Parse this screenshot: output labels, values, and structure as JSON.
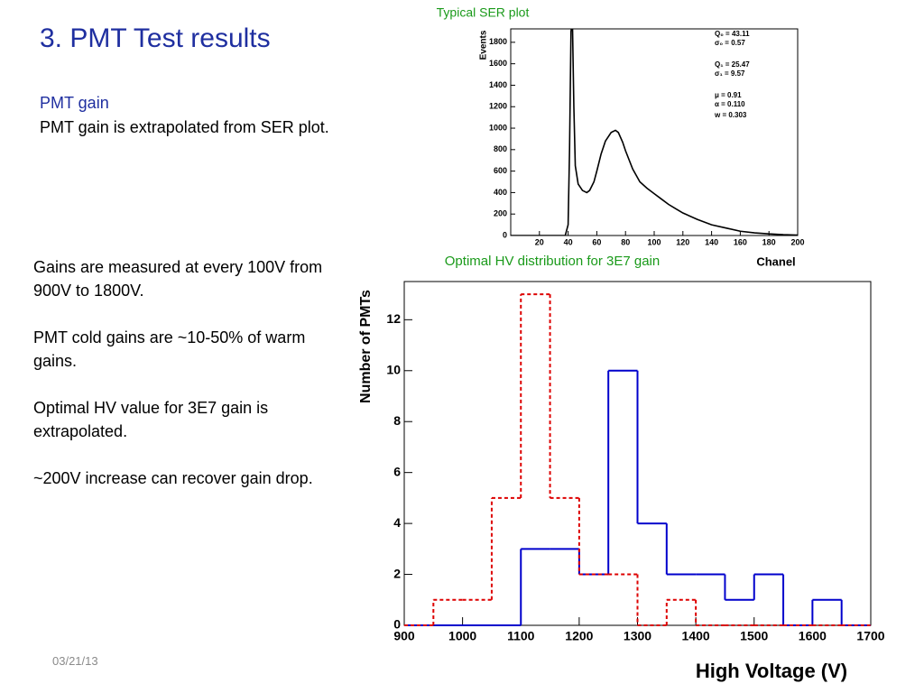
{
  "slide": {
    "title": "3. PMT Test results",
    "subtitle": "PMT gain",
    "intro": "PMT gain is extrapolated from SER plot.",
    "paragraphs": [
      "Gains are measured at every 100V from 900V to 1800V.",
      "PMT cold gains are ~10-50% of warm gains.",
      "Optimal HV value for 3E7 gain is extrapolated.",
      "~200V increase can recover gain drop."
    ],
    "date": "03/21/13"
  },
  "chart_data": [
    {
      "type": "line",
      "title": "Typical SER plot",
      "xlabel": "Chanel",
      "ylabel": "Events",
      "color": "#000000",
      "x": [
        0,
        38,
        40,
        41,
        42,
        43,
        44,
        45,
        47,
        50,
        53,
        55,
        58,
        60,
        63,
        66,
        70,
        73,
        75,
        78,
        80,
        85,
        90,
        95,
        100,
        105,
        110,
        115,
        120,
        130,
        140,
        150,
        160,
        170,
        180,
        190,
        200
      ],
      "values": [
        0,
        0,
        100,
        800,
        1900,
        2000,
        1200,
        650,
        480,
        420,
        400,
        420,
        500,
        600,
        760,
        880,
        960,
        980,
        960,
        870,
        790,
        620,
        500,
        440,
        390,
        340,
        290,
        250,
        210,
        150,
        100,
        70,
        40,
        25,
        15,
        8,
        4
      ],
      "xlim": [
        0,
        200
      ],
      "xticks": [
        20,
        40,
        60,
        80,
        100,
        120,
        140,
        160,
        180,
        200
      ],
      "ylim": [
        0,
        1925
      ],
      "yticks": [
        0,
        200,
        400,
        600,
        800,
        1000,
        1200,
        1400,
        1600,
        1800
      ],
      "annotations": [
        "Q₀ = 43.11",
        "σ₀ = 0.57",
        "Q₁ = 25.47",
        "σ₁ = 9.57",
        "μ = 0.91",
        "α = 0.110",
        "w = 0.303"
      ]
    },
    {
      "type": "histogram",
      "title": "Optimal HV distribution for 3E7 gain",
      "xlabel": "High Voltage (V)",
      "ylabel": "Number of PMTs",
      "bins": [
        900,
        950,
        1000,
        1050,
        1100,
        1150,
        1200,
        1250,
        1300,
        1350,
        1400,
        1450,
        1500,
        1550,
        1600,
        1650,
        1700
      ],
      "series": [
        {
          "color": "#0000cc",
          "dashed": false,
          "values": [
            0,
            0,
            0,
            0,
            3,
            3,
            2,
            10,
            4,
            2,
            2,
            1,
            2,
            0,
            1,
            0
          ]
        },
        {
          "color": "#dd0000",
          "dashed": true,
          "values": [
            0,
            1,
            1,
            5,
            13,
            5,
            2,
            2,
            0,
            1,
            0,
            0,
            0,
            0,
            0,
            0
          ]
        }
      ],
      "xlim": [
        900,
        1700
      ],
      "xticks": [
        900,
        1000,
        1100,
        1200,
        1300,
        1400,
        1500,
        1600,
        1700
      ],
      "ylim": [
        0,
        13.5
      ],
      "yticks": [
        0,
        2,
        4,
        6,
        8,
        10,
        12
      ]
    }
  ]
}
